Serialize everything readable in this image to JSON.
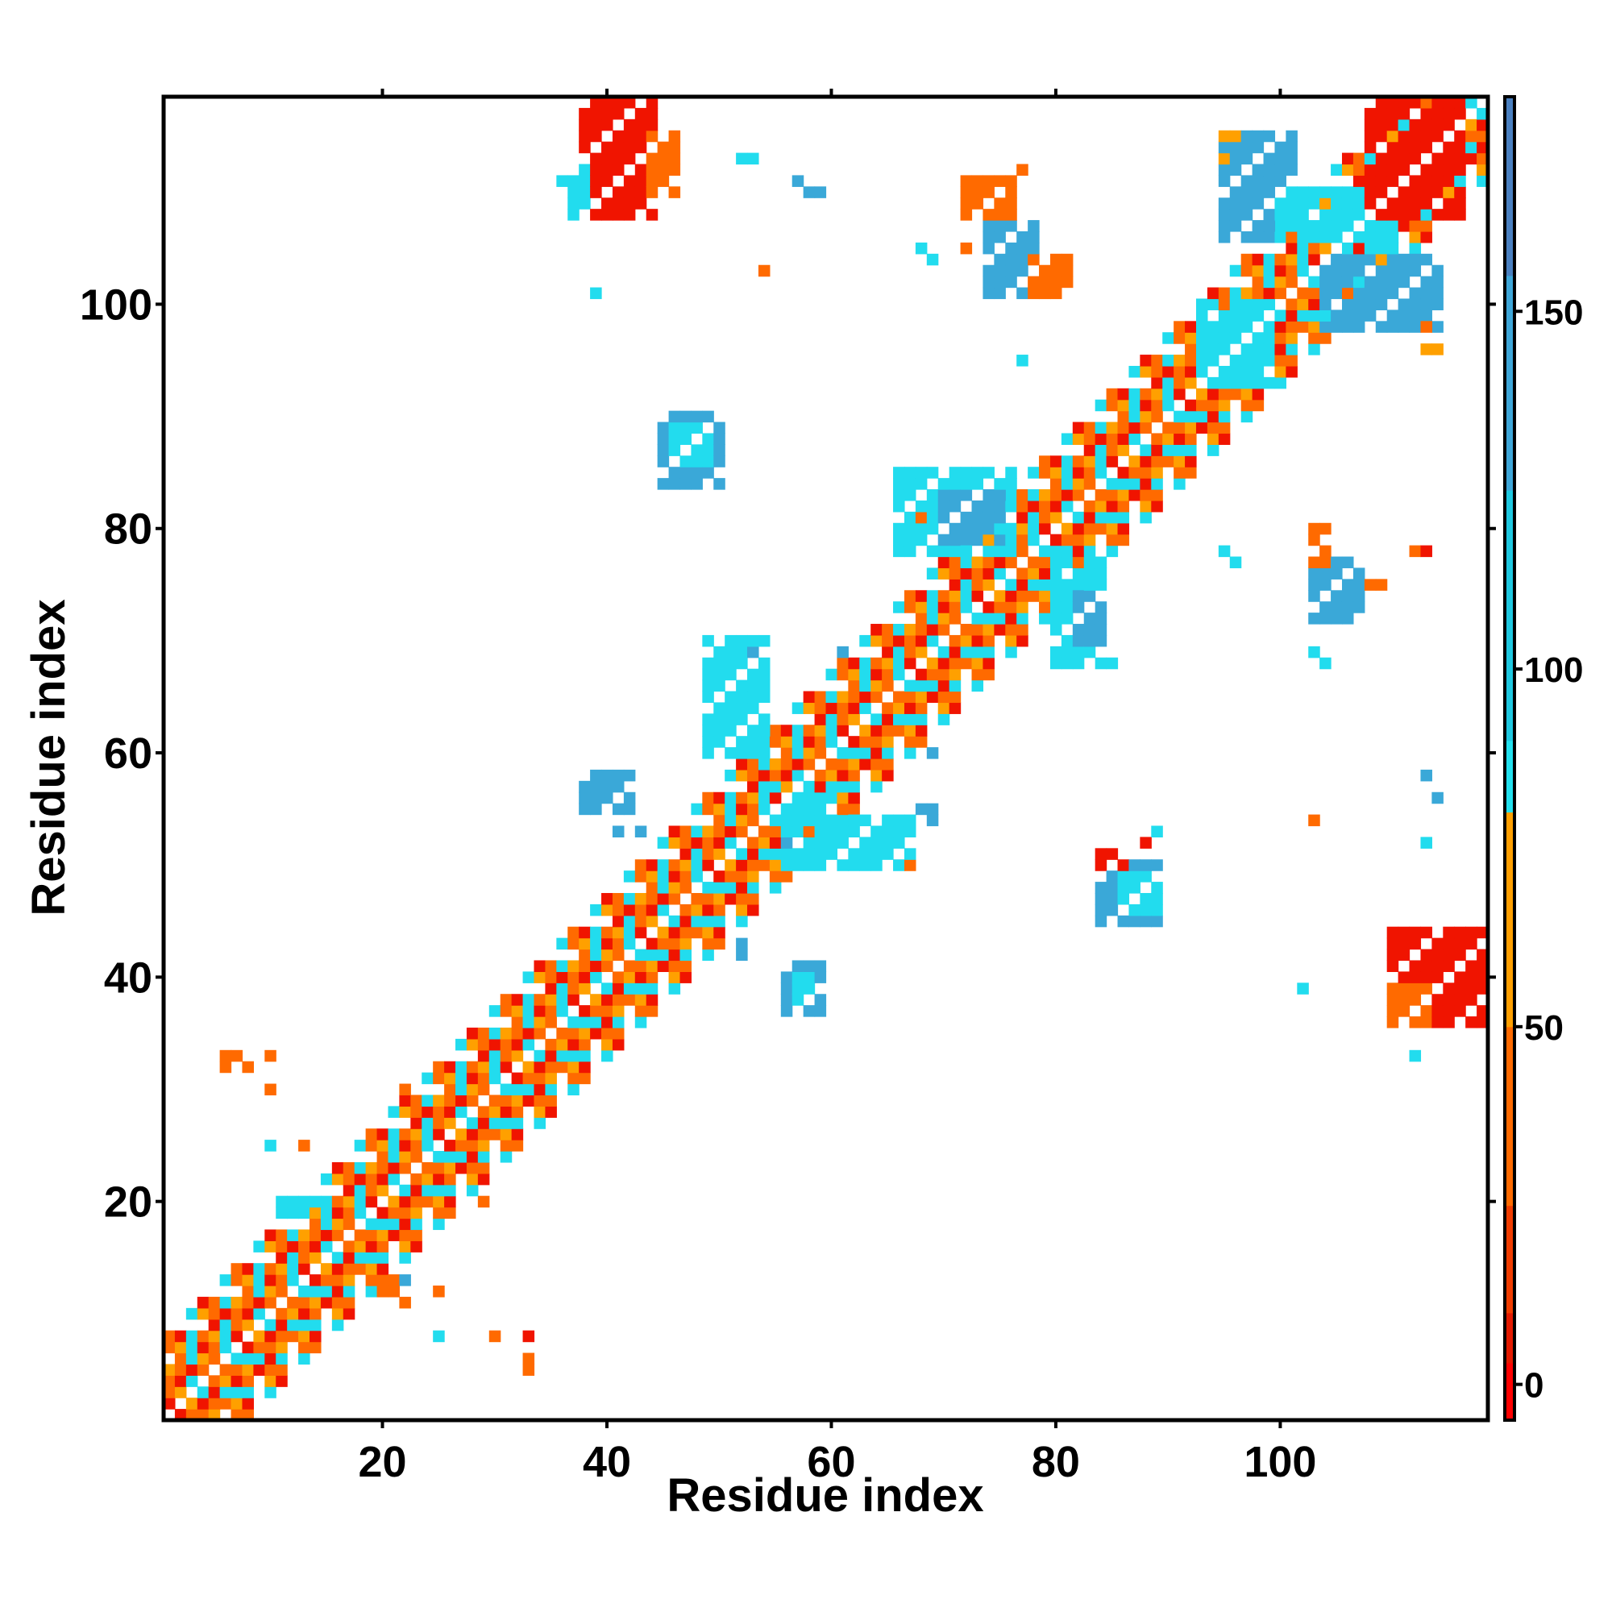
{
  "chart_data": {
    "type": "heatmap",
    "title": "",
    "xlabel": "Residue index",
    "ylabel": "Residue index",
    "xlim": [
      1,
      118
    ],
    "ylim": [
      1,
      118
    ],
    "x_ticks": [
      20,
      40,
      60,
      80,
      100
    ],
    "y_ticks": [
      20,
      40,
      60,
      80,
      100
    ],
    "colorbar": {
      "range": [
        -5,
        180
      ],
      "ticks": [
        0,
        50,
        100,
        150
      ],
      "bands": [
        {
          "from": -5,
          "to": 3,
          "color": "#ff0000"
        },
        {
          "from": 3,
          "to": 10,
          "color": "#e31a00"
        },
        {
          "from": 10,
          "to": 25,
          "color": "#f03c00"
        },
        {
          "from": 25,
          "to": 50,
          "color": "#ff6a00"
        },
        {
          "from": 50,
          "to": 80,
          "color": "#ff9f00"
        },
        {
          "from": 80,
          "to": 90,
          "color": "#22e0ee"
        },
        {
          "from": 90,
          "to": 125,
          "color": "#1ec8e0"
        },
        {
          "from": 125,
          "to": 155,
          "color": "#3ea6d8"
        },
        {
          "from": 155,
          "to": 180,
          "color": "#4a80c0"
        },
        {
          "from": 180,
          "to": 185,
          "color": "#ffffff"
        }
      ]
    },
    "cell_colors": {
      "r": "#f01400",
      "o": "#ff6a00",
      "y": "#ffa000",
      "c": "#22dcee",
      "b": "#3aa8d8",
      "d": "#4a88c4"
    },
    "diagonal_band": {
      "from": 1,
      "to": 118,
      "pattern": [
        "r",
        "o",
        "y",
        "c",
        "o",
        "r",
        "c",
        "y",
        "o",
        "c",
        "r",
        "o"
      ]
    },
    "clusters": [
      {
        "x": [
          38,
          44
        ],
        "y": [
          108,
          118
        ],
        "color": "r"
      },
      {
        "x": [
          44,
          46
        ],
        "y": [
          110,
          115
        ],
        "color": "o"
      },
      {
        "x": [
          37,
          38
        ],
        "y": [
          108,
          112
        ],
        "color": "c"
      },
      {
        "x": [
          95,
          101
        ],
        "y": [
          106,
          115
        ],
        "color": "b"
      },
      {
        "x": [
          104,
          114
        ],
        "y": [
          98,
          104
        ],
        "color": "b"
      },
      {
        "x": [
          100,
          110
        ],
        "y": [
          106,
          110
        ],
        "color": "c"
      },
      {
        "x": [
          93,
          99
        ],
        "y": [
          93,
          100
        ],
        "color": "c"
      },
      {
        "x": [
          108,
          116
        ],
        "y": [
          108,
          118
        ],
        "color": "r"
      },
      {
        "x": [
          110,
          118
        ],
        "y": [
          36,
          44
        ],
        "color": "r"
      },
      {
        "x": [
          110,
          113
        ],
        "y": [
          36,
          39
        ],
        "color": "o"
      },
      {
        "x": [
          74,
          78
        ],
        "y": [
          101,
          107
        ],
        "color": "b"
      },
      {
        "x": [
          78,
          81
        ],
        "y": [
          101,
          104
        ],
        "color": "o"
      },
      {
        "x": [
          72,
          76
        ],
        "y": [
          108,
          111
        ],
        "color": "o"
      },
      {
        "x": [
          45,
          50
        ],
        "y": [
          84,
          90
        ],
        "color": "b"
      },
      {
        "x": [
          46,
          49
        ],
        "y": [
          86,
          89
        ],
        "color": "c"
      },
      {
        "x": [
          66,
          76
        ],
        "y": [
          78,
          85
        ],
        "color": "c"
      },
      {
        "x": [
          70,
          75
        ],
        "y": [
          79,
          83
        ],
        "color": "b"
      },
      {
        "x": [
          80,
          84
        ],
        "y": [
          68,
          77
        ],
        "color": "c"
      },
      {
        "x": [
          82,
          84
        ],
        "y": [
          70,
          74
        ],
        "color": "b"
      },
      {
        "x": [
          103,
          107
        ],
        "y": [
          72,
          77
        ],
        "color": "b"
      },
      {
        "x": [
          103,
          104
        ],
        "y": [
          77,
          80
        ],
        "color": "o"
      },
      {
        "x": [
          49,
          54
        ],
        "y": [
          60,
          70
        ],
        "color": "c"
      },
      {
        "x": [
          56,
          60
        ],
        "y": [
          50,
          56
        ],
        "color": "c"
      },
      {
        "x": [
          38,
          42
        ],
        "y": [
          55,
          58
        ],
        "color": "b"
      },
      {
        "x": [
          56,
          59
        ],
        "y": [
          37,
          41
        ],
        "color": "b"
      },
      {
        "x": [
          57,
          58
        ],
        "y": [
          38,
          40
        ],
        "color": "c"
      },
      {
        "x": [
          61,
          67
        ],
        "y": [
          50,
          54
        ],
        "color": "c"
      },
      {
        "x": [
          84,
          89
        ],
        "y": [
          45,
          50
        ],
        "color": "b"
      },
      {
        "x": [
          86,
          89
        ],
        "y": [
          46,
          49
        ],
        "color": "c"
      },
      {
        "x": [
          84,
          86
        ],
        "y": [
          50,
          51
        ],
        "color": "r"
      },
      {
        "x": [
          6,
          8
        ],
        "y": [
          32,
          33
        ],
        "color": "o"
      },
      {
        "x": [
          11,
          14
        ],
        "y": [
          19,
          20
        ],
        "color": "c"
      },
      {
        "x": [
          21,
          22
        ],
        "y": [
          11,
          13
        ],
        "color": "o"
      }
    ],
    "scatter_cells": [
      [
        10,
        33,
        "o"
      ],
      [
        10,
        30,
        "o"
      ],
      [
        10,
        25,
        "c"
      ],
      [
        13,
        25,
        "o"
      ],
      [
        22,
        30,
        "o"
      ],
      [
        29,
        20,
        "o"
      ],
      [
        25,
        12,
        "o"
      ],
      [
        25,
        8,
        "c"
      ],
      [
        30,
        8,
        "o"
      ],
      [
        33,
        8,
        "r"
      ],
      [
        33,
        5,
        "o"
      ],
      [
        33,
        6,
        "o"
      ],
      [
        22,
        13,
        "b"
      ],
      [
        20,
        12,
        "o"
      ],
      [
        36,
        111,
        "c"
      ],
      [
        39,
        101,
        "c"
      ],
      [
        52,
        113,
        "c"
      ],
      [
        53,
        113,
        "c"
      ],
      [
        58,
        110,
        "b"
      ],
      [
        59,
        110,
        "b"
      ],
      [
        57,
        111,
        "b"
      ],
      [
        54,
        103,
        "o"
      ],
      [
        68,
        105,
        "c"
      ],
      [
        69,
        104,
        "c"
      ],
      [
        72,
        105,
        "o"
      ],
      [
        76,
        111,
        "o"
      ],
      [
        77,
        112,
        "o"
      ],
      [
        77,
        95,
        "c"
      ],
      [
        67,
        84,
        "c"
      ],
      [
        68,
        81,
        "o"
      ],
      [
        95,
        115,
        "y"
      ],
      [
        96,
        115,
        "y"
      ],
      [
        95,
        113,
        "y"
      ],
      [
        113,
        96,
        "y"
      ],
      [
        114,
        96,
        "y"
      ],
      [
        113,
        98,
        "o"
      ],
      [
        95,
        78,
        "c"
      ],
      [
        96,
        77,
        "c"
      ],
      [
        103,
        69,
        "c"
      ],
      [
        104,
        68,
        "c"
      ],
      [
        108,
        75,
        "o"
      ],
      [
        109,
        75,
        "o"
      ],
      [
        112,
        78,
        "o"
      ],
      [
        113,
        78,
        "r"
      ],
      [
        102,
        39,
        "c"
      ],
      [
        112,
        33,
        "c"
      ],
      [
        103,
        54,
        "o"
      ],
      [
        113,
        58,
        "b"
      ],
      [
        114,
        56,
        "b"
      ],
      [
        113,
        52,
        "c"
      ],
      [
        88,
        52,
        "r"
      ],
      [
        89,
        53,
        "c"
      ],
      [
        84,
        68,
        "c"
      ],
      [
        85,
        68,
        "c"
      ],
      [
        53,
        69,
        "b"
      ],
      [
        61,
        69,
        "b"
      ],
      [
        55,
        57,
        "c"
      ],
      [
        56,
        52,
        "b"
      ],
      [
        68,
        55,
        "b"
      ],
      [
        69,
        54,
        "b"
      ],
      [
        67,
        50,
        "o"
      ],
      [
        41,
        53,
        "b"
      ],
      [
        43,
        53,
        "b"
      ],
      [
        52,
        43,
        "b"
      ],
      [
        52,
        42,
        "b"
      ],
      [
        54,
        67,
        "c"
      ],
      [
        69,
        60,
        "b"
      ],
      [
        69,
        55,
        "b"
      ]
    ]
  }
}
